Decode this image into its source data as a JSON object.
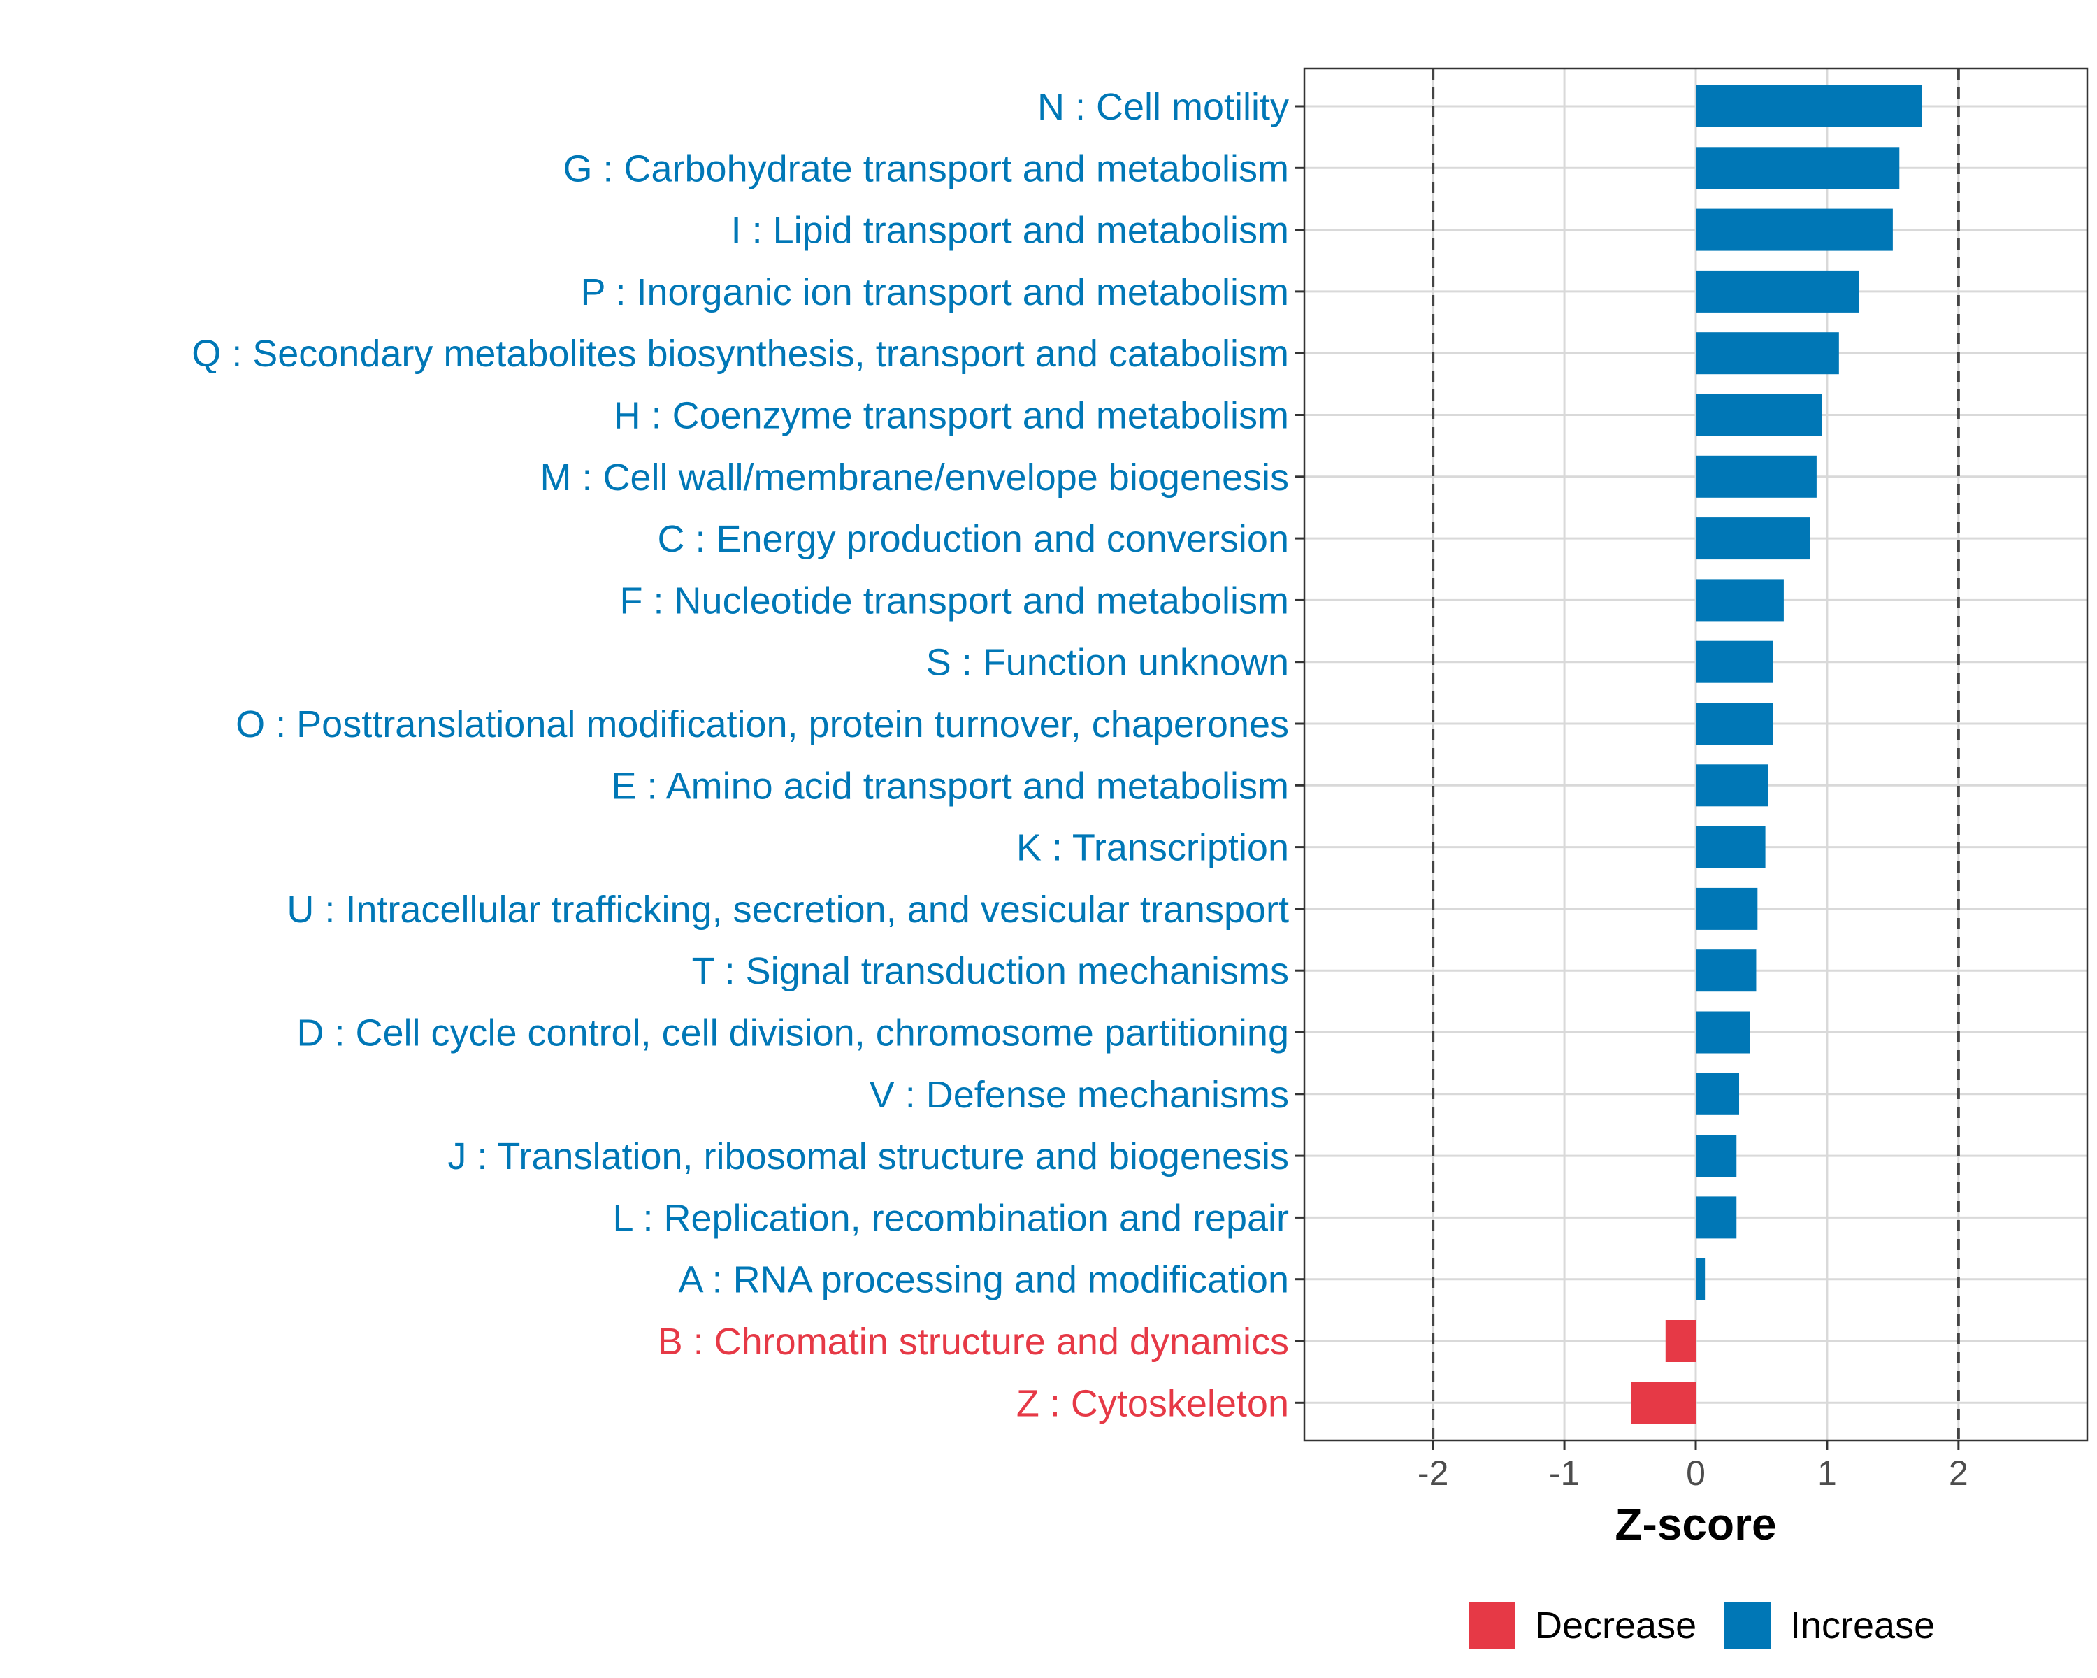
{
  "chart_data": {
    "type": "bar",
    "orientation": "horizontal",
    "title": "",
    "xlabel": "Z-score",
    "ylabel": "",
    "xlim": [
      -2.98,
      2.98
    ],
    "xticks": [
      -2,
      -1,
      0,
      1,
      2
    ],
    "xtick_labels": [
      "-2",
      "-1",
      "0",
      "1",
      "2"
    ],
    "reference_lines": [
      -2,
      2
    ],
    "grid": true,
    "legend_position": "bottom",
    "colors": {
      "Decrease": "#e63946",
      "Increase": "#0077b6"
    },
    "categories": [
      "N : Cell motility",
      "G : Carbohydrate transport and metabolism",
      "I : Lipid transport and metabolism",
      "P : Inorganic ion transport and metabolism",
      "Q : Secondary metabolites biosynthesis, transport and catabolism",
      "H : Coenzyme transport and metabolism",
      "M : Cell wall/membrane/envelope biogenesis",
      "C : Energy production and conversion",
      "F : Nucleotide transport and metabolism",
      "S : Function unknown",
      "O : Posttranslational modification, protein turnover, chaperones",
      "E : Amino acid transport and metabolism",
      "K : Transcription",
      "U : Intracellular trafficking, secretion, and vesicular transport",
      "T : Signal transduction mechanisms",
      "D : Cell cycle control, cell division, chromosome partitioning",
      "V : Defense mechanisms",
      "J : Translation, ribosomal structure and biogenesis",
      "L : Replication, recombination and repair",
      "A : RNA processing and modification",
      "B : Chromatin structure and dynamics",
      "Z : Cytoskeleton"
    ],
    "values": [
      1.72,
      1.55,
      1.5,
      1.24,
      1.09,
      0.96,
      0.92,
      0.87,
      0.67,
      0.59,
      0.59,
      0.55,
      0.53,
      0.47,
      0.46,
      0.41,
      0.33,
      0.31,
      0.31,
      0.07,
      -0.23,
      -0.49
    ],
    "direction": [
      "Increase",
      "Increase",
      "Increase",
      "Increase",
      "Increase",
      "Increase",
      "Increase",
      "Increase",
      "Increase",
      "Increase",
      "Increase",
      "Increase",
      "Increase",
      "Increase",
      "Increase",
      "Increase",
      "Increase",
      "Increase",
      "Increase",
      "Increase",
      "Decrease",
      "Decrease"
    ],
    "legend": [
      {
        "label": "Decrease",
        "color": "#e63946"
      },
      {
        "label": "Increase",
        "color": "#0077b6"
      }
    ]
  }
}
